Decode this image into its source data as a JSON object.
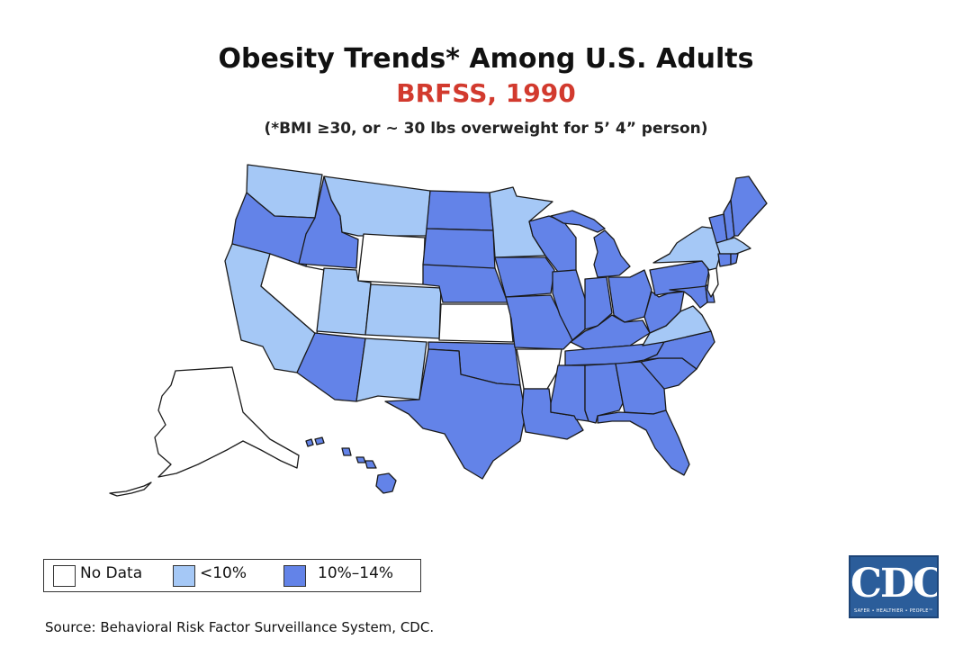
{
  "title": "Obesity Trends* Among U.S. Adults",
  "subtitle": "BRFSS, 1990",
  "note": "(*BMI ≥30, or ~ 30 lbs overweight for 5’ 4” person)",
  "colors": {
    "subtitle": "#d23a2e",
    "no_data": "#ffffff",
    "lt10": "#a5c8f6",
    "c10_14": "#6383e8",
    "logo": "#2b5d9a"
  },
  "legend": [
    {
      "label": "No Data",
      "category": "no_data"
    },
    {
      "label": "<10%",
      "category": "lt10"
    },
    {
      "label": "10%–14%",
      "category": "c10_14"
    }
  ],
  "source": "Source: Behavioral Risk Factor Surveillance System, CDC.",
  "logo": {
    "text": "CDC",
    "tagline": "SAFER • HEALTHIER • PEOPLE™"
  },
  "map_data": {
    "states": {
      "WA": "lt10",
      "OR": "c10_14",
      "CA": "lt10",
      "ID": "c10_14",
      "NV": "no_data",
      "MT": "lt10",
      "WY": "no_data",
      "UT": "lt10",
      "AZ": "c10_14",
      "CO": "lt10",
      "NM": "lt10",
      "ND": "c10_14",
      "SD": "c10_14",
      "NE": "c10_14",
      "KS": "no_data",
      "OK": "c10_14",
      "TX": "c10_14",
      "MN": "lt10",
      "IA": "c10_14",
      "MO": "c10_14",
      "AR": "no_data",
      "LA": "c10_14",
      "WI": "c10_14",
      "IL": "c10_14",
      "MI": "c10_14",
      "IN": "c10_14",
      "OH": "c10_14",
      "KY": "c10_14",
      "TN": "c10_14",
      "MS": "c10_14",
      "AL": "c10_14",
      "GA": "c10_14",
      "FL": "c10_14",
      "SC": "c10_14",
      "NC": "c10_14",
      "VA": "lt10",
      "WV": "c10_14",
      "MD": "c10_14",
      "DE": "c10_14",
      "PA": "c10_14",
      "NJ": "no_data",
      "NY": "lt10",
      "CT": "c10_14",
      "RI": "c10_14",
      "MA": "lt10",
      "VT": "c10_14",
      "NH": "c10_14",
      "ME": "c10_14",
      "AK": "no_data",
      "HI": "c10_14"
    }
  }
}
